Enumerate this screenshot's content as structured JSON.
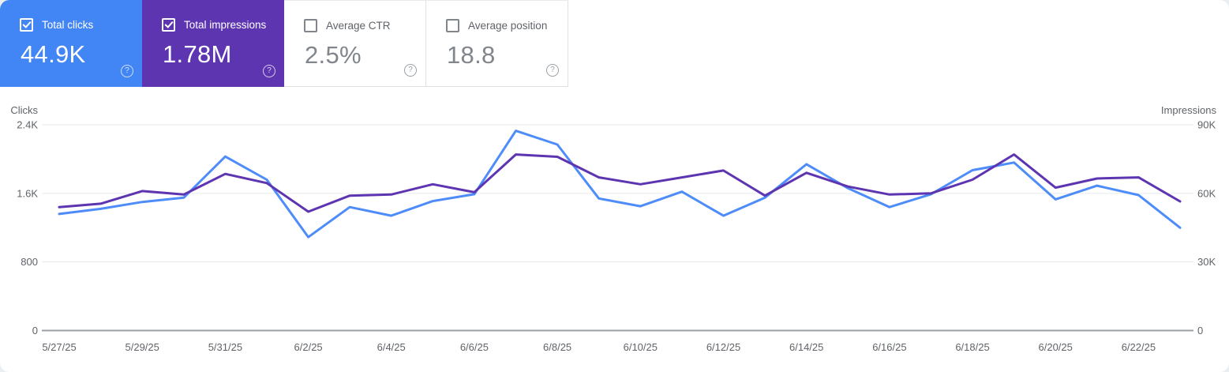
{
  "icons": {
    "help": "?",
    "check": "checkmark"
  },
  "cards": [
    {
      "id": "total-clicks",
      "label": "Total clicks",
      "value": "44.9K",
      "checked": true,
      "color": "#4285f4"
    },
    {
      "id": "total-impressions",
      "label": "Total impressions",
      "value": "1.78M",
      "checked": true,
      "color": "#5e35b1"
    },
    {
      "id": "average-ctr",
      "label": "Average CTR",
      "value": "2.5%",
      "checked": false,
      "color": "#ffffff"
    },
    {
      "id": "average-position",
      "label": "Average position",
      "value": "18.8",
      "checked": false,
      "color": "#ffffff"
    }
  ],
  "chart_data": {
    "type": "line",
    "x": [
      "5/27/25",
      "5/28/25",
      "5/29/25",
      "5/30/25",
      "5/31/25",
      "6/1/25",
      "6/2/25",
      "6/3/25",
      "6/4/25",
      "6/5/25",
      "6/6/25",
      "6/7/25",
      "6/8/25",
      "6/9/25",
      "6/10/25",
      "6/11/25",
      "6/12/25",
      "6/13/25",
      "6/14/25",
      "6/15/25",
      "6/16/25",
      "6/17/25",
      "6/18/25",
      "6/19/25",
      "6/20/25",
      "6/21/25",
      "6/22/25",
      "6/23/25"
    ],
    "x_label_every": 2,
    "series": [
      {
        "name": "Clicks",
        "axis": "left",
        "color": "#4e8cf9",
        "values": [
          1360,
          1420,
          1500,
          1550,
          2030,
          1760,
          1090,
          1440,
          1340,
          1510,
          1590,
          2330,
          2170,
          1540,
          1450,
          1620,
          1340,
          1550,
          1940,
          1660,
          1440,
          1590,
          1870,
          1960,
          1530,
          1690,
          1580,
          1200
        ]
      },
      {
        "name": "Impressions",
        "axis": "right",
        "color": "#5e35b1",
        "values": [
          54000,
          55500,
          61000,
          59500,
          68500,
          64500,
          52000,
          59000,
          59500,
          64000,
          60500,
          77000,
          76000,
          67000,
          64000,
          67000,
          70000,
          59000,
          69000,
          63000,
          59500,
          60000,
          66000,
          77000,
          62500,
          66500,
          67000,
          56500
        ]
      }
    ],
    "left_axis": {
      "title": "Clicks",
      "range": [
        0,
        2400
      ],
      "ticks": [
        "0",
        "800",
        "1.6K",
        "2.4K"
      ]
    },
    "right_axis": {
      "title": "Impressions",
      "range": [
        0,
        90000
      ],
      "ticks": [
        "0",
        "30K",
        "60K",
        "90K"
      ]
    },
    "grid": true,
    "legend_position": "none"
  }
}
